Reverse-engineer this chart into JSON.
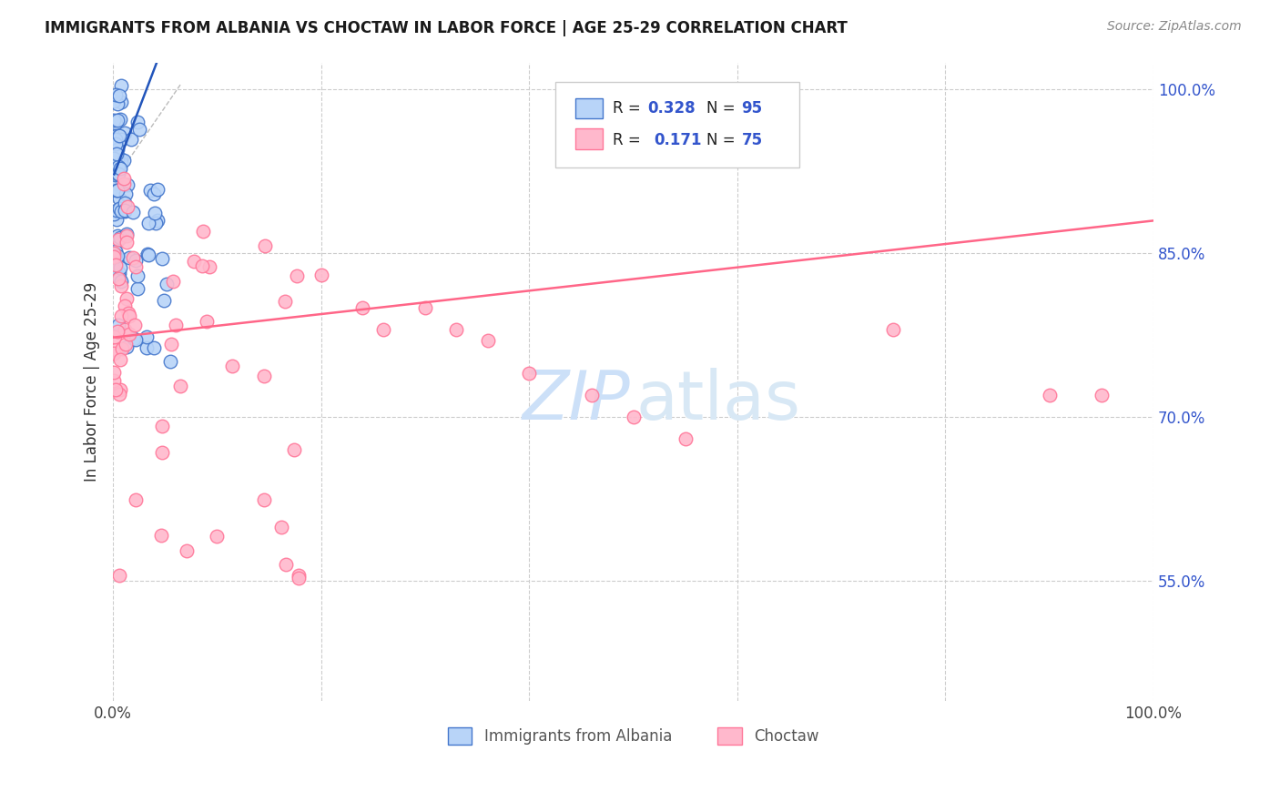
{
  "title": "IMMIGRANTS FROM ALBANIA VS CHOCTAW IN LABOR FORCE | AGE 25-29 CORRELATION CHART",
  "source": "Source: ZipAtlas.com",
  "ylabel": "In Labor Force | Age 25-29",
  "albania_R": "0.328",
  "albania_N": "95",
  "choctaw_R": "0.171",
  "choctaw_N": "75",
  "albania_face": "#b8d4f8",
  "albania_edge": "#4477cc",
  "choctaw_face": "#ffb8cc",
  "choctaw_edge": "#ff7799",
  "trend_albania": "#2255bb",
  "trend_choctaw": "#ff6688",
  "diag_color": "#bbbbbb",
  "watermark_zip": "#cce0f8",
  "watermark_atlas": "#d8e8f5",
  "legend_blue": "#3355cc",
  "grid_color": "#cccccc",
  "ymin": 0.44,
  "ymax": 1.025,
  "xmin": 0.0,
  "xmax": 1.0,
  "yticks": [
    0.55,
    0.7,
    0.85,
    1.0
  ],
  "ytick_labels": [
    "55.0%",
    "70.0%",
    "85.0%",
    "100.0%"
  ]
}
